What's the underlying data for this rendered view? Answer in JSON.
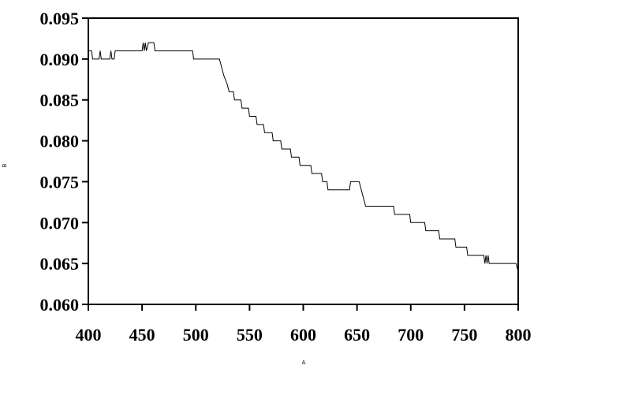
{
  "chart_data": {
    "type": "line",
    "x_label": "A",
    "y_label": "B",
    "x": [
      400,
      403,
      404,
      410,
      411,
      412,
      420,
      421,
      422,
      424,
      425,
      450,
      451,
      452,
      453,
      454,
      456,
      461,
      462,
      497,
      498,
      522,
      524,
      526,
      529,
      531,
      535,
      536,
      542,
      543,
      549,
      550,
      556,
      557,
      563,
      564,
      571,
      572,
      579,
      580,
      588,
      589,
      596,
      597,
      607,
      608,
      617,
      618,
      622,
      623,
      643,
      644,
      652,
      654,
      656,
      658,
      684,
      685,
      699,
      700,
      713,
      714,
      726,
      727,
      741,
      742,
      752,
      753,
      768,
      769,
      770,
      771,
      772,
      773,
      798,
      800
    ],
    "values": [
      0.091,
      0.091,
      0.09,
      0.09,
      0.091,
      0.09,
      0.09,
      0.091,
      0.09,
      0.09,
      0.091,
      0.091,
      0.092,
      0.091,
      0.092,
      0.091,
      0.092,
      0.092,
      0.091,
      0.091,
      0.09,
      0.09,
      0.089,
      0.088,
      0.087,
      0.086,
      0.086,
      0.085,
      0.085,
      0.084,
      0.084,
      0.083,
      0.083,
      0.082,
      0.082,
      0.081,
      0.081,
      0.08,
      0.08,
      0.079,
      0.079,
      0.078,
      0.078,
      0.077,
      0.077,
      0.076,
      0.076,
      0.075,
      0.075,
      0.074,
      0.074,
      0.075,
      0.075,
      0.074,
      0.073,
      0.072,
      0.072,
      0.071,
      0.071,
      0.07,
      0.07,
      0.069,
      0.069,
      0.068,
      0.068,
      0.067,
      0.067,
      0.066,
      0.066,
      0.065,
      0.066,
      0.065,
      0.066,
      0.065,
      0.065,
      0.064
    ],
    "color": "#000000",
    "xlim": [
      400,
      800
    ],
    "xticks": [
      400,
      450,
      500,
      550,
      600,
      650,
      700,
      750,
      800
    ],
    "ylim": [
      0.06,
      0.095
    ],
    "yticks": [
      {
        "value": 0.06,
        "label": "0.060"
      },
      0.065,
      {
        "value": 0.07,
        "label": "0.070"
      },
      0.075,
      {
        "value": 0.08,
        "label": "0.080"
      },
      0.085,
      {
        "value": 0.09,
        "label": "0.090"
      },
      0.095
    ],
    "grid": false
  }
}
